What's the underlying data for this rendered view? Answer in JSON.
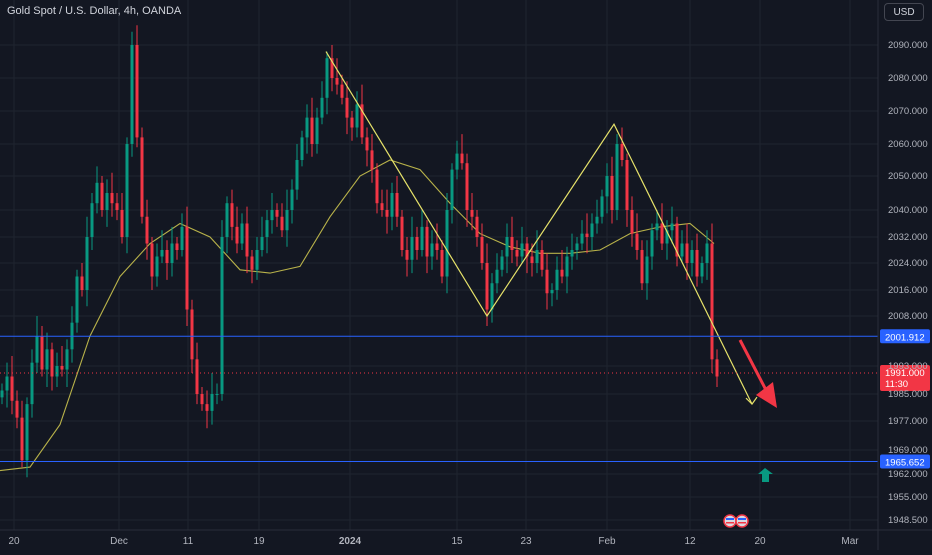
{
  "header": {
    "title": "Gold Spot / U.S. Dollar, 4h, OANDA",
    "currency_label": "USD"
  },
  "colors": {
    "background": "#131722",
    "up": "#089981",
    "down": "#f23645",
    "ma": "#b8b24a",
    "pattern": "#e6e26a",
    "level_line": "#2962ff",
    "grid": "#1f2430",
    "axis_text": "#b2b5be"
  },
  "chart_data": {
    "type": "candlestick",
    "title": "Gold Spot / U.S. Dollar, 4h, OANDA",
    "y_ticks": [
      "2090.000",
      "2080.000",
      "2070.000",
      "2060.000",
      "2050.000",
      "2040.000",
      "2032.000",
      "2024.000",
      "2016.000",
      "2008.000",
      "1993.000",
      "1985.000",
      "1977.000",
      "1969.000",
      "1962.000",
      "1955.000",
      "1948.500"
    ],
    "x_ticks": [
      "20",
      "Dec",
      "11",
      "19",
      "2024",
      "15",
      "23",
      "Feb",
      "12",
      "20",
      "Mar"
    ],
    "ylim": [
      1944,
      2100
    ],
    "grid": true,
    "series": [
      {
        "type": "line",
        "values": [
          [
            0,
            1963
          ],
          [
            30,
            1964
          ],
          [
            60,
            1976
          ],
          [
            90,
            2002
          ],
          [
            120,
            2020
          ],
          [
            150,
            2030
          ],
          [
            180,
            2036
          ],
          [
            210,
            2032
          ],
          [
            240,
            2022
          ],
          [
            270,
            2021
          ],
          [
            300,
            2023
          ],
          [
            330,
            2038
          ],
          [
            360,
            2050
          ],
          [
            390,
            2055
          ],
          [
            420,
            2052
          ],
          [
            450,
            2042
          ],
          [
            480,
            2033
          ],
          [
            510,
            2029
          ],
          [
            540,
            2027
          ],
          [
            570,
            2027
          ],
          [
            600,
            2028
          ],
          [
            630,
            2033
          ],
          [
            660,
            2035
          ],
          [
            690,
            2036
          ],
          [
            714,
            2030
          ]
        ]
      },
      {
        "type": "candles",
        "values": [
          [
            0,
            1986
          ],
          [
            5,
            1990
          ],
          [
            10,
            1983
          ],
          [
            15,
            1978
          ],
          [
            20,
            1966
          ],
          [
            25,
            1982
          ],
          [
            30,
            1994
          ],
          [
            35,
            2002
          ],
          [
            40,
            1992
          ],
          [
            45,
            1998
          ],
          [
            50,
            1990
          ],
          [
            55,
            1993
          ],
          [
            60,
            1992
          ],
          [
            65,
            1998
          ],
          [
            70,
            2006
          ],
          [
            75,
            2020
          ],
          [
            80,
            2016
          ],
          [
            85,
            2032
          ],
          [
            90,
            2042
          ],
          [
            95,
            2048
          ],
          [
            100,
            2040
          ],
          [
            105,
            2045
          ],
          [
            110,
            2042
          ],
          [
            115,
            2040
          ],
          [
            120,
            2032
          ],
          [
            125,
            2060
          ],
          [
            130,
            2090
          ],
          [
            135,
            2062
          ],
          [
            140,
            2038
          ],
          [
            145,
            2030
          ],
          [
            150,
            2020
          ],
          [
            155,
            2026
          ],
          [
            160,
            2028
          ],
          [
            165,
            2024
          ],
          [
            170,
            2030
          ],
          [
            175,
            2028
          ],
          [
            180,
            2035
          ],
          [
            185,
            2010
          ],
          [
            190,
            1995
          ],
          [
            195,
            1985
          ],
          [
            200,
            1982
          ],
          [
            205,
            1980
          ],
          [
            210,
            1985
          ],
          [
            215,
            1985
          ],
          [
            220,
            2032
          ],
          [
            225,
            2042
          ],
          [
            230,
            2035
          ],
          [
            235,
            2030
          ],
          [
            240,
            2036
          ],
          [
            245,
            2026
          ],
          [
            250,
            2022
          ],
          [
            255,
            2028
          ],
          [
            260,
            2032
          ],
          [
            265,
            2037
          ],
          [
            270,
            2040
          ],
          [
            275,
            2038
          ],
          [
            280,
            2034
          ],
          [
            285,
            2040
          ],
          [
            290,
            2046
          ],
          [
            295,
            2055
          ],
          [
            300,
            2062
          ],
          [
            305,
            2068
          ],
          [
            310,
            2060
          ],
          [
            315,
            2068
          ],
          [
            320,
            2074
          ],
          [
            325,
            2086
          ],
          [
            330,
            2080
          ],
          [
            335,
            2078
          ],
          [
            340,
            2074
          ],
          [
            345,
            2068
          ],
          [
            350,
            2065
          ],
          [
            355,
            2072
          ],
          [
            360,
            2062
          ],
          [
            365,
            2058
          ],
          [
            370,
            2052
          ],
          [
            375,
            2042
          ],
          [
            380,
            2040
          ],
          [
            385,
            2038
          ],
          [
            390,
            2045
          ],
          [
            395,
            2038
          ],
          [
            400,
            2028
          ],
          [
            405,
            2025
          ],
          [
            410,
            2032
          ],
          [
            415,
            2028
          ],
          [
            420,
            2035
          ],
          [
            425,
            2026
          ],
          [
            430,
            2030
          ],
          [
            435,
            2028
          ],
          [
            440,
            2020
          ],
          [
            445,
            2040
          ],
          [
            450,
            2052
          ],
          [
            455,
            2057
          ],
          [
            460,
            2054
          ],
          [
            465,
            2040
          ],
          [
            470,
            2038
          ],
          [
            475,
            2032
          ],
          [
            480,
            2024
          ],
          [
            485,
            2010
          ],
          [
            490,
            2018
          ],
          [
            495,
            2022
          ],
          [
            500,
            2026
          ],
          [
            505,
            2032
          ],
          [
            510,
            2028
          ],
          [
            515,
            2026
          ],
          [
            520,
            2030
          ],
          [
            525,
            2026
          ],
          [
            530,
            2024
          ],
          [
            535,
            2028
          ],
          [
            540,
            2022
          ],
          [
            545,
            2015
          ],
          [
            550,
            2016
          ],
          [
            555,
            2022
          ],
          [
            560,
            2020
          ],
          [
            565,
            2026
          ],
          [
            570,
            2028
          ],
          [
            575,
            2030
          ],
          [
            580,
            2033
          ],
          [
            585,
            2032
          ],
          [
            590,
            2036
          ],
          [
            595,
            2038
          ],
          [
            600,
            2044
          ],
          [
            605,
            2050
          ],
          [
            610,
            2040
          ],
          [
            615,
            2060
          ],
          [
            620,
            2055
          ],
          [
            625,
            2040
          ],
          [
            630,
            2033
          ],
          [
            635,
            2028
          ],
          [
            640,
            2018
          ],
          [
            645,
            2026
          ],
          [
            650,
            2034
          ],
          [
            655,
            2036
          ],
          [
            660,
            2030
          ],
          [
            665,
            2034
          ],
          [
            670,
            2036
          ],
          [
            675,
            2026
          ],
          [
            680,
            2030
          ],
          [
            685,
            2024
          ],
          [
            690,
            2028
          ],
          [
            695,
            2020
          ],
          [
            700,
            2024
          ],
          [
            705,
            2030
          ],
          [
            710,
            1995
          ],
          [
            715,
            1990
          ]
        ]
      }
    ],
    "levels": [
      {
        "value": "2001.912",
        "color": "#2962ff"
      },
      {
        "value": "1965.652",
        "color": "#2962ff"
      }
    ],
    "current_price": {
      "value": "1991.000",
      "countdown": "11:30",
      "color": "#f23645"
    },
    "pattern_points": [
      [
        0,
        0
      ]
    ],
    "annotations": [
      "1985.000"
    ]
  },
  "axis_labels": {
    "price_tag_1": "2001.912",
    "price_tag_2": "1965.652",
    "last_price": "1991.000",
    "countdown": "11:30"
  }
}
